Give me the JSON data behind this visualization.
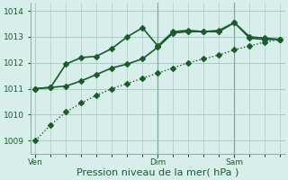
{
  "xlabel": "Pression niveau de la mer( hPa )",
  "ylim": [
    1008.5,
    1014.3
  ],
  "yticks": [
    1009,
    1010,
    1011,
    1012,
    1013,
    1014
  ],
  "background_color": "#d7eeeb",
  "line_color": "#1a5c2a",
  "grid_color": "#aaccc8",
  "xtick_labels": [
    "Ven",
    "Dim",
    "Sam"
  ],
  "xtick_positions": [
    0,
    8,
    13
  ],
  "vline_positions": [
    8,
    13
  ],
  "xlim": [
    -0.3,
    16.3
  ],
  "line1_x": [
    0,
    1,
    2,
    3,
    4,
    5,
    6,
    7,
    8,
    9,
    10,
    11,
    12,
    13,
    14,
    15,
    16
  ],
  "line1_y": [
    1009.0,
    1009.6,
    1010.1,
    1010.45,
    1010.75,
    1011.0,
    1011.2,
    1011.4,
    1011.6,
    1011.8,
    1012.0,
    1012.15,
    1012.3,
    1012.5,
    1012.65,
    1012.8,
    1012.9
  ],
  "line2_x": [
    0,
    1,
    2,
    3,
    4,
    5,
    6,
    7,
    8,
    9,
    10,
    11,
    12,
    13,
    14,
    15,
    16
  ],
  "line2_y": [
    1011.0,
    1011.05,
    1011.95,
    1012.2,
    1012.25,
    1012.55,
    1013.0,
    1013.35,
    1012.65,
    1013.2,
    1013.25,
    1013.2,
    1013.25,
    1013.55,
    1013.0,
    1012.95,
    1012.9
  ],
  "line3_x": [
    0,
    1,
    2,
    3,
    4,
    5,
    6,
    7,
    8,
    9,
    10,
    11,
    12,
    13,
    14,
    15,
    16
  ],
  "line3_y": [
    1011.0,
    1011.05,
    1011.1,
    1011.3,
    1011.55,
    1011.8,
    1011.95,
    1012.15,
    1012.6,
    1013.15,
    1013.2,
    1013.2,
    1013.2,
    1013.55,
    1012.95,
    1012.9,
    1012.9
  ],
  "marker_size": 3.0,
  "linewidth1": 1.0,
  "linewidth2": 1.2,
  "tick_fontsize": 6.5,
  "label_fontsize": 8.0
}
